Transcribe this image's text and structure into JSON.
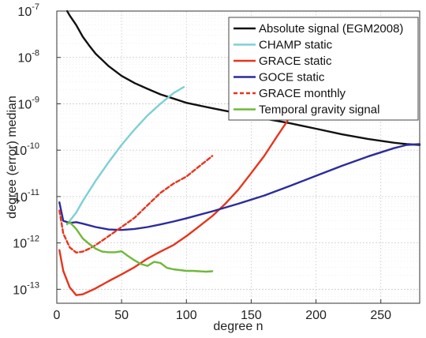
{
  "chart_data": {
    "type": "line",
    "title": "",
    "xlabel": "degree n",
    "ylabel": "degree (error) median",
    "xlim": [
      0,
      280
    ],
    "ylim": [
      5e-14,
      1e-07
    ],
    "yscale": "log",
    "grid": true,
    "legend_position": "top-right",
    "xticks": [
      {
        "value": 0,
        "label": "0"
      },
      {
        "value": 50,
        "label": "50"
      },
      {
        "value": 100,
        "label": "100"
      },
      {
        "value": 150,
        "label": "150"
      },
      {
        "value": 200,
        "label": "200"
      },
      {
        "value": 250,
        "label": "250"
      }
    ],
    "yticks": [
      {
        "value": 1e-07,
        "base": "10",
        "exp": "-7"
      },
      {
        "value": 1e-08,
        "base": "10",
        "exp": "-8"
      },
      {
        "value": 1e-09,
        "base": "10",
        "exp": "-9"
      },
      {
        "value": 1e-10,
        "base": "10",
        "exp": "-10"
      },
      {
        "value": 1e-11,
        "base": "10",
        "exp": "-11"
      },
      {
        "value": 1e-12,
        "base": "10",
        "exp": "-12"
      },
      {
        "value": 1e-13,
        "base": "10",
        "exp": "-13"
      }
    ],
    "series": [
      {
        "name": "Absolute signal (EGM2008)",
        "color": "#111111",
        "dash": "solid",
        "x": [
          8,
          10,
          15,
          20,
          25,
          30,
          40,
          50,
          60,
          70,
          80,
          90,
          100,
          120,
          140,
          160,
          180,
          200,
          220,
          240,
          260,
          270,
          280
        ],
        "y": [
          1e-07,
          8e-08,
          5e-08,
          2.8e-08,
          1.8e-08,
          1.2e-08,
          6.5e-09,
          4e-09,
          2.8e-09,
          2.1e-09,
          1.6e-09,
          1.3e-09,
          1.05e-09,
          8e-10,
          6.2e-10,
          4.8e-10,
          3.8e-10,
          2.9e-10,
          2.2e-10,
          1.75e-10,
          1.45e-10,
          1.35e-10,
          1.3e-10
        ]
      },
      {
        "name": "CHAMP static",
        "color": "#7ecfd6",
        "dash": "solid",
        "x": [
          8,
          10,
          15,
          20,
          30,
          40,
          50,
          60,
          70,
          80,
          90,
          98
        ],
        "y": [
          2.5e-12,
          3e-12,
          4.5e-12,
          8e-12,
          2.2e-11,
          5.5e-11,
          1.3e-10,
          2.8e-10,
          5.6e-10,
          1e-09,
          1.7e-09,
          2.3e-09
        ]
      },
      {
        "name": "GRACE static",
        "color": "#e8341c",
        "dash": "solid",
        "x": [
          2,
          5,
          10,
          15,
          20,
          30,
          40,
          50,
          60,
          70,
          80,
          90,
          100,
          110,
          120,
          130,
          140,
          150,
          160,
          170,
          178
        ],
        "y": [
          7e-13,
          2.5e-13,
          1.1e-13,
          7.5e-14,
          7.8e-14,
          1.05e-13,
          1.5e-13,
          2.1e-13,
          3e-13,
          4.6e-13,
          6.5e-13,
          9e-13,
          1.4e-12,
          2.3e-12,
          3.8e-12,
          7e-12,
          1.4e-11,
          3.2e-11,
          7.5e-11,
          2e-10,
          4.3e-10
        ]
      },
      {
        "name": "GOCE static",
        "color": "#2a2c9c",
        "dash": "solid",
        "x": [
          2,
          5,
          10,
          15,
          20,
          30,
          40,
          50,
          60,
          70,
          80,
          90,
          100,
          120,
          140,
          160,
          180,
          200,
          220,
          240,
          260,
          270,
          280
        ],
        "y": [
          7.5e-12,
          3e-12,
          2.7e-12,
          2.8e-12,
          2.6e-12,
          2.2e-12,
          1.95e-12,
          1.9e-12,
          2e-12,
          2.2e-12,
          2.5e-12,
          2.9e-12,
          3.4e-12,
          4.8e-12,
          7e-12,
          1.05e-11,
          1.7e-11,
          2.8e-11,
          4.6e-11,
          7.3e-11,
          1.1e-10,
          1.3e-10,
          1.35e-10
        ]
      },
      {
        "name": "GRACE monthly",
        "color": "#e8341c",
        "dash": "dashed",
        "x": [
          2,
          5,
          10,
          15,
          20,
          25,
          30,
          40,
          50,
          60,
          70,
          80,
          90,
          100,
          110,
          120
        ],
        "y": [
          5e-12,
          1.6e-12,
          8e-13,
          6.2e-13,
          6.5e-13,
          7.5e-13,
          9e-13,
          1.4e-12,
          2.2e-12,
          3.5e-12,
          6.5e-12,
          1.2e-11,
          1.9e-11,
          2.7e-11,
          4.5e-11,
          7.5e-11
        ]
      },
      {
        "name": "Temporal gravity signal",
        "color": "#6fb83a",
        "dash": "solid",
        "x": [
          8,
          10,
          15,
          20,
          25,
          30,
          35,
          40,
          45,
          50,
          55,
          60,
          65,
          70,
          75,
          80,
          85,
          90,
          95,
          100,
          105,
          110,
          115,
          120
        ],
        "y": [
          2.6e-12,
          2.8e-12,
          2e-12,
          1.25e-12,
          9.5e-13,
          7.5e-13,
          6.5e-13,
          6.3e-13,
          6.3e-13,
          6.6e-13,
          5.2e-13,
          4.2e-13,
          3.5e-13,
          3.2e-13,
          3.9e-13,
          3.7e-13,
          2.9e-13,
          2.7e-13,
          2.6e-13,
          2.5e-13,
          2.5e-13,
          2.45e-13,
          2.4e-13,
          2.45e-13
        ]
      }
    ]
  }
}
